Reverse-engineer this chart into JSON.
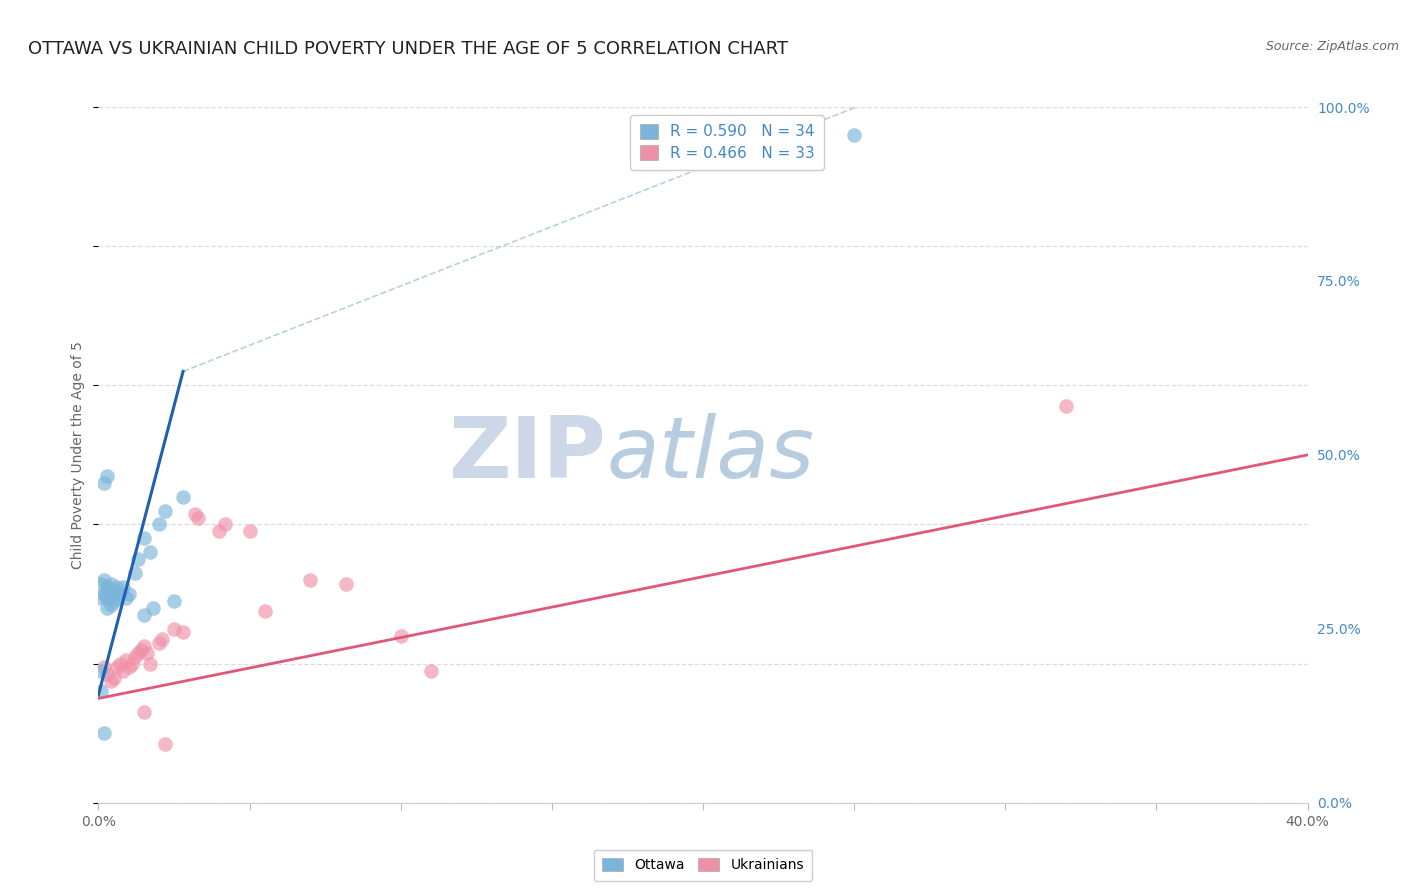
{
  "title": "OTTAWA VS UKRAINIAN CHILD POVERTY UNDER THE AGE OF 5 CORRELATION CHART",
  "source": "Source: ZipAtlas.com",
  "ylabel": "Child Poverty Under the Age of 5",
  "xlim": [
    0.0,
    0.4
  ],
  "ylim": [
    0.0,
    1.0
  ],
  "xtick_positions": [
    0.0,
    0.05,
    0.1,
    0.15,
    0.2,
    0.25,
    0.3,
    0.35,
    0.4
  ],
  "xtick_labels": [
    "0.0%",
    "",
    "",
    "",
    "",
    "",
    "",
    "",
    "40.0%"
  ],
  "ytick_vals": [
    0.0,
    0.25,
    0.5,
    0.75,
    1.0
  ],
  "ytick_labels_right": [
    "0.0%",
    "25.0%",
    "50.0%",
    "75.0%",
    "100.0%"
  ],
  "legend_top": [
    {
      "label": "R = 0.590   N = 34",
      "color": "#a8c4e0"
    },
    {
      "label": "R = 0.466   N = 33",
      "color": "#f4a8b8"
    }
  ],
  "ottawa_scatter": [
    [
      0.001,
      0.295
    ],
    [
      0.001,
      0.315
    ],
    [
      0.002,
      0.3
    ],
    [
      0.002,
      0.32
    ],
    [
      0.003,
      0.28
    ],
    [
      0.003,
      0.295
    ],
    [
      0.003,
      0.31
    ],
    [
      0.004,
      0.285
    ],
    [
      0.004,
      0.3
    ],
    [
      0.004,
      0.315
    ],
    [
      0.005,
      0.29
    ],
    [
      0.005,
      0.305
    ],
    [
      0.006,
      0.295
    ],
    [
      0.006,
      0.31
    ],
    [
      0.007,
      0.3
    ],
    [
      0.008,
      0.31
    ],
    [
      0.009,
      0.295
    ],
    [
      0.01,
      0.3
    ],
    [
      0.012,
      0.33
    ],
    [
      0.013,
      0.35
    ],
    [
      0.015,
      0.38
    ],
    [
      0.017,
      0.36
    ],
    [
      0.02,
      0.4
    ],
    [
      0.022,
      0.42
    ],
    [
      0.002,
      0.46
    ],
    [
      0.003,
      0.47
    ],
    [
      0.028,
      0.44
    ],
    [
      0.001,
      0.19
    ],
    [
      0.001,
      0.16
    ],
    [
      0.015,
      0.27
    ],
    [
      0.018,
      0.28
    ],
    [
      0.002,
      0.1
    ],
    [
      0.025,
      0.29
    ],
    [
      0.25,
      0.96
    ]
  ],
  "ukrainian_scatter": [
    [
      0.002,
      0.195
    ],
    [
      0.003,
      0.185
    ],
    [
      0.004,
      0.175
    ],
    [
      0.005,
      0.18
    ],
    [
      0.006,
      0.195
    ],
    [
      0.007,
      0.2
    ],
    [
      0.008,
      0.19
    ],
    [
      0.009,
      0.205
    ],
    [
      0.01,
      0.195
    ],
    [
      0.011,
      0.2
    ],
    [
      0.012,
      0.21
    ],
    [
      0.013,
      0.215
    ],
    [
      0.014,
      0.22
    ],
    [
      0.015,
      0.225
    ],
    [
      0.016,
      0.215
    ],
    [
      0.017,
      0.2
    ],
    [
      0.02,
      0.23
    ],
    [
      0.021,
      0.235
    ],
    [
      0.025,
      0.25
    ],
    [
      0.028,
      0.245
    ],
    [
      0.032,
      0.415
    ],
    [
      0.033,
      0.41
    ],
    [
      0.04,
      0.39
    ],
    [
      0.042,
      0.4
    ],
    [
      0.05,
      0.39
    ],
    [
      0.055,
      0.275
    ],
    [
      0.07,
      0.32
    ],
    [
      0.082,
      0.315
    ],
    [
      0.1,
      0.24
    ],
    [
      0.015,
      0.13
    ],
    [
      0.022,
      0.085
    ],
    [
      0.11,
      0.19
    ],
    [
      0.32,
      0.57
    ]
  ],
  "ottawa_line_solid": {
    "x": [
      0.0,
      0.028
    ],
    "y": [
      0.155,
      0.62
    ]
  },
  "ottawa_line_dashed": {
    "x": [
      0.028,
      0.28
    ],
    "y": [
      0.62,
      1.05
    ]
  },
  "ukrainian_line": {
    "x": [
      0.0,
      0.4
    ],
    "y": [
      0.15,
      0.5
    ]
  },
  "dot_color_ottawa": "#7ab4d8",
  "dot_color_ukrainian": "#f090a8",
  "line_color_ottawa": "#2060b0",
  "line_color_ukrainian": "#e05878",
  "background_color": "#ffffff",
  "grid_color": "#dddddd",
  "title_color": "#222222",
  "axis_label_color": "#666666",
  "right_tick_color": "#4488cc",
  "watermark_zip": "ZIP",
  "watermark_atlas": "atlas",
  "watermark_color_zip": "#ccd8e8",
  "watermark_color_atlas": "#b8cce0",
  "title_fontsize": 13,
  "source_fontsize": 9,
  "ylabel_fontsize": 10,
  "dot_size": 110,
  "dot_alpha": 0.65
}
